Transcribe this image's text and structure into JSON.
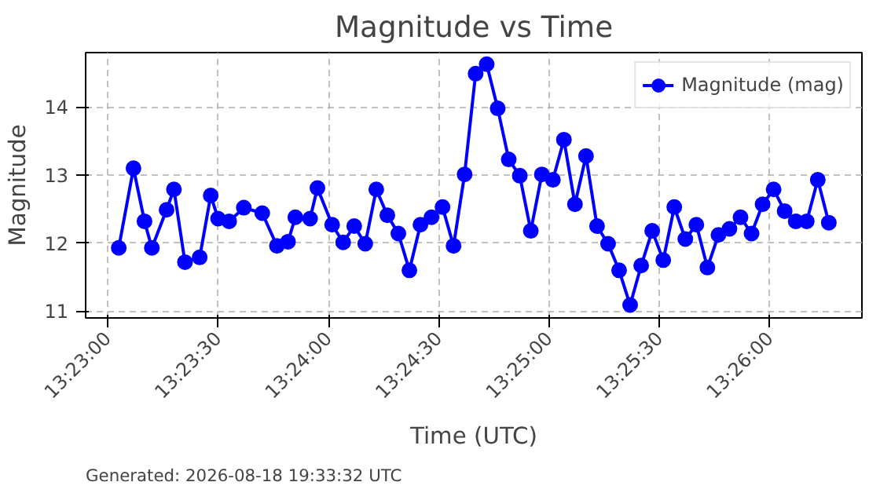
{
  "chart_data": {
    "type": "line",
    "title": "Magnitude vs Time",
    "xlabel": "Time (UTC)",
    "ylabel": "Magnitude",
    "annotations": [
      "Generated: 2026-08-18 19:33:32 UTC"
    ],
    "x": [
      "2026-08-18T13:23:03",
      "2026-08-18T13:23:07",
      "2026-08-18T13:23:10",
      "2026-08-18T13:23:12",
      "2026-08-18T13:23:16",
      "2026-08-18T13:23:18",
      "2026-08-18T13:23:21",
      "2026-08-18T13:23:25",
      "2026-08-18T13:23:28",
      "2026-08-18T13:23:30",
      "2026-08-18T13:23:33",
      "2026-08-18T13:23:37",
      "2026-08-18T13:23:42",
      "2026-08-18T13:23:46",
      "2026-08-18T13:23:49",
      "2026-08-18T13:23:51",
      "2026-08-18T13:23:55",
      "2026-08-18T13:23:57",
      "2026-08-18T13:24:01",
      "2026-08-18T13:24:04",
      "2026-08-18T13:24:07",
      "2026-08-18T13:24:10",
      "2026-08-18T13:24:13",
      "2026-08-18T13:24:16",
      "2026-08-18T13:24:19",
      "2026-08-18T13:24:22",
      "2026-08-18T13:24:25",
      "2026-08-18T13:24:28",
      "2026-08-18T13:24:31",
      "2026-08-18T13:24:34",
      "2026-08-18T13:24:37",
      "2026-08-18T13:24:40",
      "2026-08-18T13:24:43",
      "2026-08-18T13:24:46",
      "2026-08-18T13:24:49",
      "2026-08-18T13:24:52",
      "2026-08-18T13:24:55",
      "2026-08-18T13:24:58",
      "2026-08-18T13:25:01",
      "2026-08-18T13:25:04",
      "2026-08-18T13:25:07",
      "2026-08-18T13:25:10",
      "2026-08-18T13:25:13",
      "2026-08-18T13:25:16",
      "2026-08-18T13:25:19",
      "2026-08-18T13:25:22",
      "2026-08-18T13:25:25",
      "2026-08-18T13:25:28",
      "2026-08-18T13:25:31",
      "2026-08-18T13:25:34",
      "2026-08-18T13:25:37",
      "2026-08-18T13:25:40",
      "2026-08-18T13:25:43",
      "2026-08-18T13:25:46",
      "2026-08-18T13:25:49",
      "2026-08-18T13:25:52",
      "2026-08-18T13:25:55",
      "2026-08-18T13:25:58",
      "2026-08-18T13:26:01",
      "2026-08-18T13:26:04",
      "2026-08-18T13:26:07",
      "2026-08-18T13:26:10",
      "2026-08-18T13:26:13",
      "2026-08-18T13:26:16"
    ],
    "series": [
      {
        "name": "Magnitude (mag)",
        "color": "#0000ff",
        "values": [
          11.93,
          13.1,
          12.32,
          11.93,
          12.49,
          12.79,
          11.72,
          11.79,
          12.7,
          12.36,
          12.32,
          12.52,
          12.44,
          11.96,
          12.02,
          12.38,
          12.36,
          12.81,
          12.27,
          12.01,
          12.25,
          11.99,
          12.79,
          12.41,
          12.14,
          11.6,
          12.27,
          12.38,
          12.53,
          11.96,
          13.01,
          14.49,
          14.63,
          13.98,
          13.23,
          12.99,
          12.18,
          13.01,
          12.93,
          13.52,
          12.57,
          13.28,
          12.25,
          11.99,
          11.6,
          11.09,
          11.67,
          12.18,
          11.75,
          12.53,
          12.06,
          12.27,
          11.64,
          12.12,
          12.21,
          12.38,
          12.14,
          12.57,
          12.79,
          12.47,
          12.32,
          12.32,
          12.93,
          12.3
        ]
      }
    ],
    "xlim": [
      "2026-08-18T13:22:54",
      "2026-08-18T13:26:25"
    ],
    "xticks": [
      {
        "value": "2026-08-18T13:23:00",
        "label": "13:23:00"
      },
      {
        "value": "2026-08-18T13:23:30",
        "label": "13:23:30"
      },
      {
        "value": "2026-08-18T13:24:00",
        "label": "13:24:00"
      },
      {
        "value": "2026-08-18T13:24:30",
        "label": "13:24:30"
      },
      {
        "value": "2026-08-18T13:25:00",
        "label": "13:25:00"
      },
      {
        "value": "2026-08-18T13:25:30",
        "label": "13:25:30"
      },
      {
        "value": "2026-08-18T13:26:00",
        "label": "13:26:00"
      }
    ],
    "ylim": [
      10.9,
      14.8
    ],
    "yticks": [
      11,
      12,
      13,
      14
    ],
    "grid": true,
    "legend": "top right",
    "marker": "circle",
    "line_style": "solid"
  }
}
